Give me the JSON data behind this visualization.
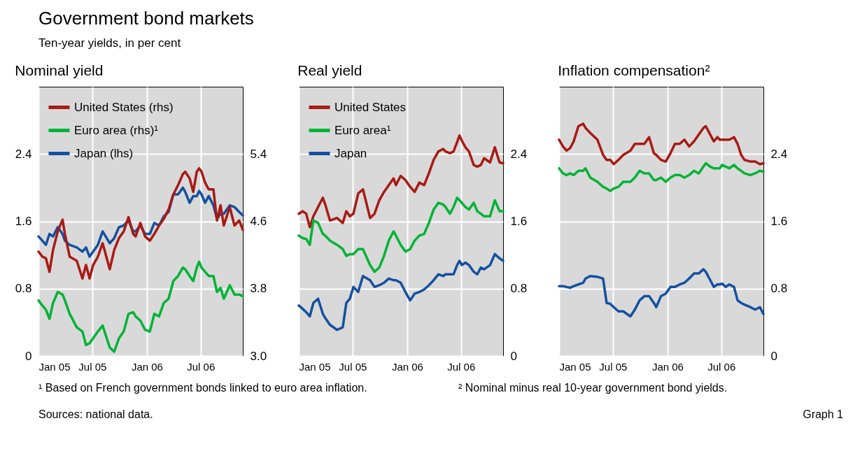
{
  "chart_data": [
    {
      "type": "other",
      "title": "Government bond markets",
      "subtitle": "Ten-year yields, in per cent"
    },
    {
      "type": "line",
      "title": "Nominal yield",
      "legend": "top left",
      "grid": true,
      "line_style": "solid",
      "x": [
        "2005-01-01",
        "2005-01-14",
        "2005-01-26",
        "2005-02-07",
        "2005-02-19",
        "2005-03-07",
        "2005-03-23",
        "2005-03-31",
        "2005-04-16",
        "2005-05-10",
        "2005-05-29",
        "2005-06-10",
        "2005-06-22",
        "2005-07-04",
        "2005-07-20",
        "2005-08-05",
        "2005-08-29",
        "2005-09-13",
        "2005-09-29",
        "2005-10-15",
        "2005-10-31",
        "2005-11-16",
        "2005-11-24",
        "2005-12-10",
        "2005-12-26",
        "2006-01-11",
        "2006-01-26",
        "2006-02-11",
        "2006-02-27",
        "2006-03-15",
        "2006-03-31",
        "2006-04-16",
        "2006-05-02",
        "2006-05-10",
        "2006-05-25",
        "2006-06-06",
        "2006-06-18",
        "2006-06-26",
        "2006-07-04",
        "2006-07-16",
        "2006-07-28",
        "2006-08-13",
        "2006-08-25",
        "2006-09-06",
        "2006-09-17",
        "2006-10-07",
        "2006-10-23",
        "2006-11-08",
        "2006-11-20"
      ],
      "xlim": [
        "2005-01-01",
        "2006-11-20"
      ],
      "xticks": [
        {
          "value": "2005-01-01",
          "label": "Jan 05"
        },
        {
          "value": "2005-07-01",
          "label": "Jul 05"
        },
        {
          "value": "2006-01-01",
          "label": "Jan 06"
        },
        {
          "value": "2006-07-01",
          "label": "Jul 06"
        }
      ],
      "ylim": [
        0,
        3.2
      ],
      "yticks": [
        0,
        0.8,
        1.6,
        2.4
      ],
      "y2lim": [
        3,
        6.2
      ],
      "y2ticks": [
        {
          "value": 3,
          "label": "3.0"
        },
        3.8,
        4.6,
        5.4
      ],
      "series": [
        {
          "name": "United States (rhs)",
          "color": "#a81a14",
          "axis": "y2",
          "values": [
            4.24,
            4.18,
            4.16,
            4.0,
            4.26,
            4.48,
            4.62,
            4.45,
            4.18,
            4.13,
            3.92,
            4.08,
            3.92,
            4.08,
            4.18,
            4.34,
            4.03,
            4.26,
            4.4,
            4.48,
            4.65,
            4.45,
            4.42,
            4.58,
            4.42,
            4.37,
            4.45,
            4.55,
            4.63,
            4.74,
            4.92,
            5.03,
            5.16,
            5.19,
            5.11,
            4.95,
            5.19,
            5.23,
            5.19,
            5.06,
            4.98,
            4.98,
            4.61,
            4.79,
            4.55,
            4.77,
            4.55,
            4.61,
            4.5
          ]
        },
        {
          "name": "Euro area (rhs)¹",
          "color": "#00b336",
          "axis": "y2",
          "values": [
            3.66,
            3.6,
            3.55,
            3.44,
            3.63,
            3.76,
            3.73,
            3.66,
            3.5,
            3.34,
            3.29,
            3.13,
            3.15,
            3.21,
            3.29,
            3.36,
            3.1,
            3.05,
            3.21,
            3.29,
            3.5,
            3.52,
            3.47,
            3.42,
            3.31,
            3.29,
            3.5,
            3.47,
            3.63,
            3.68,
            3.89,
            3.95,
            4.05,
            4.03,
            3.95,
            3.89,
            4.05,
            4.12,
            4.05,
            4.0,
            3.95,
            3.95,
            3.76,
            3.81,
            3.68,
            3.84,
            3.73,
            3.73,
            3.71
          ]
        },
        {
          "name": "Japan (lhs)",
          "color": "#1450a0",
          "axis": "y",
          "values": [
            1.42,
            1.37,
            1.32,
            1.45,
            1.42,
            1.53,
            1.45,
            1.37,
            1.32,
            1.29,
            1.24,
            1.29,
            1.18,
            1.24,
            1.32,
            1.48,
            1.34,
            1.4,
            1.53,
            1.55,
            1.61,
            1.48,
            1.48,
            1.55,
            1.45,
            1.45,
            1.58,
            1.55,
            1.66,
            1.71,
            1.92,
            1.92,
            2.0,
            1.95,
            1.82,
            1.9,
            1.9,
            1.96,
            1.92,
            1.82,
            1.9,
            1.79,
            1.63,
            1.69,
            1.69,
            1.79,
            1.77,
            1.71,
            1.67
          ]
        }
      ]
    },
    {
      "type": "line",
      "title": "Real yield",
      "legend": "top left",
      "grid": true,
      "line_style": "solid",
      "x": [
        "2005-01-01",
        "2005-01-14",
        "2005-01-26",
        "2005-02-07",
        "2005-02-19",
        "2005-03-07",
        "2005-03-23",
        "2005-03-31",
        "2005-04-16",
        "2005-05-10",
        "2005-05-29",
        "2005-06-10",
        "2005-06-22",
        "2005-07-04",
        "2005-07-20",
        "2005-08-05",
        "2005-08-29",
        "2005-09-13",
        "2005-09-29",
        "2005-10-15",
        "2005-10-31",
        "2005-11-16",
        "2005-11-24",
        "2005-12-10",
        "2005-12-26",
        "2006-01-11",
        "2006-01-26",
        "2006-02-11",
        "2006-02-27",
        "2006-03-15",
        "2006-03-31",
        "2006-04-16",
        "2006-05-02",
        "2006-05-10",
        "2006-05-25",
        "2006-06-06",
        "2006-06-18",
        "2006-06-26",
        "2006-07-04",
        "2006-07-16",
        "2006-07-28",
        "2006-08-13",
        "2006-08-25",
        "2006-09-06",
        "2006-09-17",
        "2006-10-07",
        "2006-10-23",
        "2006-11-08",
        "2006-11-20"
      ],
      "xlim": [
        "2005-01-01",
        "2006-11-20"
      ],
      "xticks": [
        {
          "value": "2005-01-01",
          "label": "Jan 05"
        },
        {
          "value": "2005-07-01",
          "label": "Jul 05"
        },
        {
          "value": "2006-01-01",
          "label": "Jan 06"
        },
        {
          "value": "2006-07-01",
          "label": "Jul 06"
        }
      ],
      "y2lim": [
        0,
        3.2
      ],
      "y2ticks": [
        0,
        0.8,
        1.6,
        2.4
      ],
      "series": [
        {
          "name": "United States",
          "color": "#a81a14",
          "axis": "y2",
          "values": [
            1.69,
            1.72,
            1.69,
            1.53,
            1.66,
            1.77,
            1.88,
            1.8,
            1.61,
            1.64,
            1.58,
            1.72,
            1.66,
            1.69,
            1.93,
            1.98,
            1.64,
            1.69,
            1.85,
            1.95,
            2.03,
            2.11,
            2.03,
            2.14,
            2.09,
            2.01,
            1.95,
            2.06,
            2.03,
            2.17,
            2.33,
            2.43,
            2.46,
            2.43,
            2.41,
            2.43,
            2.54,
            2.62,
            2.56,
            2.48,
            2.43,
            2.27,
            2.25,
            2.27,
            2.35,
            2.3,
            2.48,
            2.3,
            2.29
          ]
        },
        {
          "name": "Euro area¹",
          "color": "#00b336",
          "axis": "y2",
          "values": [
            1.43,
            1.4,
            1.39,
            1.32,
            1.61,
            1.58,
            1.45,
            1.43,
            1.37,
            1.32,
            1.27,
            1.19,
            1.21,
            1.21,
            1.27,
            1.27,
            1.08,
            1.0,
            1.05,
            1.19,
            1.37,
            1.48,
            1.43,
            1.32,
            1.24,
            1.27,
            1.37,
            1.43,
            1.45,
            1.58,
            1.74,
            1.82,
            1.8,
            1.77,
            1.69,
            1.77,
            1.88,
            1.85,
            1.82,
            1.77,
            1.74,
            1.82,
            1.72,
            1.69,
            1.66,
            1.66,
            1.85,
            1.72,
            1.72
          ]
        },
        {
          "name": "Japan",
          "color": "#1450a0",
          "axis": "y2",
          "values": [
            0.6,
            0.56,
            0.52,
            0.47,
            0.63,
            0.68,
            0.5,
            0.45,
            0.37,
            0.31,
            0.34,
            0.63,
            0.68,
            0.82,
            0.76,
            0.95,
            0.9,
            0.82,
            0.84,
            0.87,
            0.92,
            0.9,
            0.9,
            0.87,
            0.76,
            0.66,
            0.74,
            0.76,
            0.79,
            0.84,
            0.9,
            0.97,
            0.95,
            0.97,
            0.97,
            0.97,
            1.08,
            1.13,
            1.08,
            1.11,
            1.08,
            1.0,
            0.97,
            1.05,
            1.03,
            1.08,
            1.21,
            1.16,
            1.13
          ]
        }
      ]
    },
    {
      "type": "line",
      "title": "Inflation compensation²",
      "grid": true,
      "line_style": "solid",
      "x": [
        "2005-01-01",
        "2005-01-14",
        "2005-01-26",
        "2005-02-07",
        "2005-02-19",
        "2005-03-07",
        "2005-03-23",
        "2005-03-31",
        "2005-04-16",
        "2005-05-10",
        "2005-05-29",
        "2005-06-10",
        "2005-06-22",
        "2005-07-04",
        "2005-07-20",
        "2005-08-05",
        "2005-08-29",
        "2005-09-13",
        "2005-09-29",
        "2005-10-15",
        "2005-10-31",
        "2005-11-16",
        "2005-11-24",
        "2005-12-10",
        "2005-12-26",
        "2006-01-11",
        "2006-01-26",
        "2006-02-11",
        "2006-02-27",
        "2006-03-15",
        "2006-03-31",
        "2006-04-16",
        "2006-05-02",
        "2006-05-10",
        "2006-05-25",
        "2006-06-06",
        "2006-06-18",
        "2006-06-26",
        "2006-07-04",
        "2006-07-16",
        "2006-07-28",
        "2006-08-13",
        "2006-08-25",
        "2006-09-06",
        "2006-09-17",
        "2006-10-07",
        "2006-10-23",
        "2006-11-08",
        "2006-11-20"
      ],
      "xlim": [
        "2005-01-01",
        "2006-11-20"
      ],
      "xticks": [
        {
          "value": "2005-01-01",
          "label": "Jan 05"
        },
        {
          "value": "2005-07-01",
          "label": "Jul 05"
        },
        {
          "value": "2006-01-01",
          "label": "Jan 06"
        },
        {
          "value": "2006-07-01",
          "label": "Jul 06"
        }
      ],
      "y2lim": [
        0,
        3.2
      ],
      "y2ticks": [
        0,
        0.8,
        1.6,
        2.4
      ],
      "series": [
        {
          "color": "#a81a14",
          "axis": "y2",
          "values": [
            2.57,
            2.49,
            2.44,
            2.47,
            2.55,
            2.73,
            2.76,
            2.71,
            2.65,
            2.57,
            2.39,
            2.33,
            2.33,
            2.28,
            2.33,
            2.39,
            2.44,
            2.52,
            2.52,
            2.52,
            2.6,
            2.41,
            2.39,
            2.33,
            2.31,
            2.41,
            2.52,
            2.52,
            2.57,
            2.49,
            2.55,
            2.63,
            2.71,
            2.73,
            2.63,
            2.55,
            2.6,
            2.57,
            2.57,
            2.57,
            2.57,
            2.6,
            2.52,
            2.39,
            2.33,
            2.31,
            2.31,
            2.28,
            2.29
          ]
        },
        {
          "color": "#00b336",
          "axis": "y2",
          "values": [
            2.23,
            2.17,
            2.15,
            2.17,
            2.15,
            2.2,
            2.2,
            2.23,
            2.12,
            2.07,
            2.01,
            1.99,
            1.96,
            1.99,
            2.01,
            2.07,
            2.07,
            2.12,
            2.2,
            2.17,
            2.17,
            2.09,
            2.09,
            2.12,
            2.07,
            2.12,
            2.15,
            2.15,
            2.12,
            2.15,
            2.2,
            2.17,
            2.25,
            2.29,
            2.25,
            2.23,
            2.23,
            2.23,
            2.27,
            2.25,
            2.23,
            2.27,
            2.23,
            2.2,
            2.17,
            2.15,
            2.17,
            2.2,
            2.19
          ]
        },
        {
          "color": "#1450a0",
          "axis": "y2",
          "values": [
            0.83,
            0.83,
            0.82,
            0.81,
            0.83,
            0.85,
            0.87,
            0.92,
            0.95,
            0.94,
            0.92,
            0.63,
            0.62,
            0.58,
            0.53,
            0.53,
            0.47,
            0.55,
            0.66,
            0.71,
            0.71,
            0.63,
            0.58,
            0.71,
            0.74,
            0.82,
            0.82,
            0.85,
            0.87,
            0.92,
            0.98,
            0.98,
            1.03,
            1.0,
            0.9,
            0.82,
            0.85,
            0.85,
            0.86,
            0.82,
            0.85,
            0.82,
            0.66,
            0.63,
            0.61,
            0.58,
            0.55,
            0.58,
            0.5
          ]
        }
      ]
    },
    {
      "type": "other",
      "annotations": [
        "¹ Based on French government bonds linked to euro area inflation.",
        "² Nominal minus real 10-year government bond yields.",
        "Sources: national data.",
        "Graph 1"
      ]
    }
  ]
}
